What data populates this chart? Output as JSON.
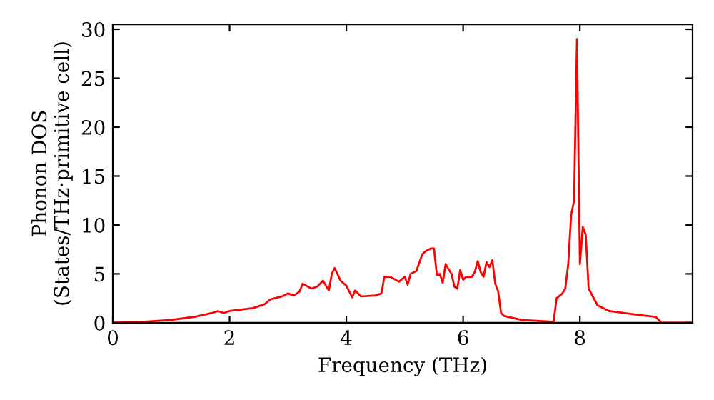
{
  "chart_data": {
    "type": "line",
    "xlabel": "Frequency (THz)",
    "ylabel": "Phonon DOS\n(States/THz·primitive cell)",
    "x": [
      0,
      0.5,
      1.0,
      1.4,
      1.7,
      1.8,
      1.9,
      2.0,
      2.4,
      2.6,
      2.7,
      2.9,
      3.0,
      3.1,
      3.2,
      3.25,
      3.4,
      3.5,
      3.6,
      3.7,
      3.75,
      3.8,
      3.9,
      4.0,
      4.05,
      4.1,
      4.15,
      4.25,
      4.5,
      4.6,
      4.65,
      4.75,
      4.9,
      5.0,
      5.05,
      5.1,
      5.2,
      5.3,
      5.35,
      5.45,
      5.5,
      5.55,
      5.6,
      5.65,
      5.7,
      5.8,
      5.85,
      5.9,
      5.95,
      6.0,
      6.05,
      6.15,
      6.2,
      6.25,
      6.3,
      6.35,
      6.4,
      6.45,
      6.5,
      6.55,
      6.6,
      6.65,
      6.7,
      7.0,
      7.55,
      7.6,
      7.7,
      7.75,
      7.8,
      7.85,
      7.9,
      7.95,
      8.0,
      8.05,
      8.1,
      8.15,
      8.3,
      8.5,
      9.0,
      9.3,
      9.4,
      9.93
    ],
    "series": [
      {
        "color": "#ff0000",
        "values": [
          0,
          0.1,
          0.3,
          0.6,
          1.0,
          1.2,
          1.0,
          1.2,
          1.5,
          1.9,
          2.4,
          2.7,
          3.0,
          2.8,
          3.2,
          4.0,
          3.5,
          3.7,
          4.3,
          3.3,
          5.0,
          5.6,
          4.3,
          3.8,
          3.2,
          2.6,
          3.3,
          2.7,
          2.8,
          3.0,
          4.7,
          4.7,
          4.2,
          4.7,
          3.9,
          5.0,
          5.3,
          7.0,
          7.3,
          7.6,
          7.6,
          4.9,
          5.0,
          4.1,
          6.0,
          5.0,
          3.7,
          3.5,
          5.4,
          4.4,
          4.7,
          4.7,
          5.2,
          6.3,
          5.2,
          4.7,
          6.2,
          5.7,
          6.4,
          4.0,
          3.2,
          1.0,
          0.7,
          0.3,
          0.1,
          2.5,
          3.0,
          3.5,
          6,
          11,
          12.5,
          29,
          6,
          9.8,
          9,
          3.5,
          1.8,
          1.2,
          0.8,
          0.6,
          0,
          0
        ]
      }
    ],
    "xlim": [
      0,
      9.93
    ],
    "ylim": [
      0,
      30.5
    ],
    "xticks": [
      0,
      2,
      4,
      6,
      8
    ],
    "yticks": [
      0,
      5,
      10,
      15,
      20,
      25,
      30
    ],
    "grid": false,
    "legend": false,
    "marker": "none",
    "line_style": "solid"
  }
}
